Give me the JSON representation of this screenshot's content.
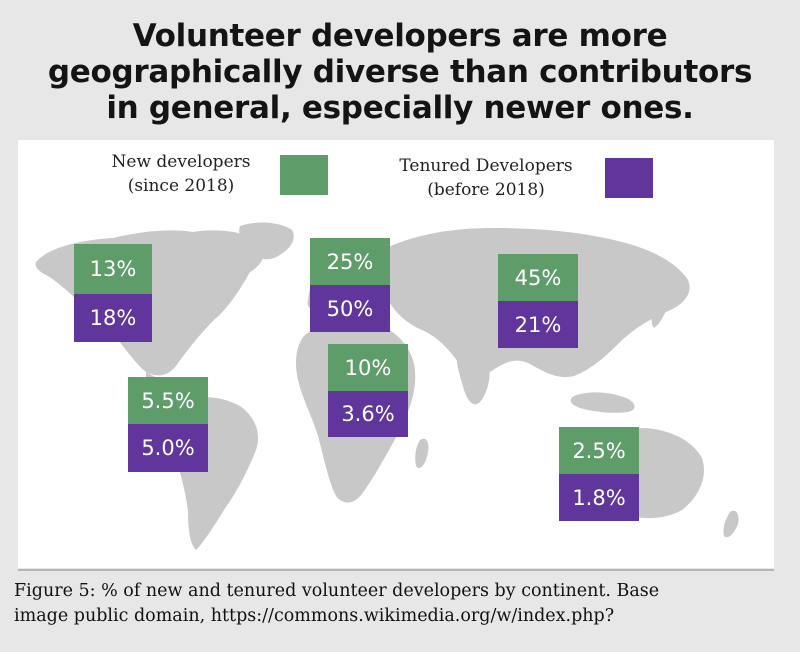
{
  "title_lines": [
    "Volunteer developers are more",
    "geographically diverse than contributors",
    "in general, especially newer ones."
  ],
  "legend": {
    "new": {
      "line1": "New developers",
      "line2": "(since 2018)",
      "color": "#5e9c6a"
    },
    "tenured": {
      "line1": "Tenured Developers",
      "line2": "(before 2018)",
      "color": "#60359c"
    }
  },
  "map_color": "#c8c8c8",
  "regions": [
    {
      "id": "north-america",
      "new": "13%",
      "tenured": "18%"
    },
    {
      "id": "europe",
      "new": "25%",
      "tenured": "50%"
    },
    {
      "id": "asia",
      "new": "45%",
      "tenured": "21%"
    },
    {
      "id": "africa",
      "new": "10%",
      "tenured": "3.6%"
    },
    {
      "id": "south-america",
      "new": "5.5%",
      "tenured": "5.0%"
    },
    {
      "id": "oceania",
      "new": "2.5%",
      "tenured": "1.8%"
    }
  ],
  "caption_lines": [
    "Figure 5: % of new and tenured volunteer developers by continent. Base",
    "image public domain, https://commons.wikimedia.org/w/index.php?"
  ]
}
